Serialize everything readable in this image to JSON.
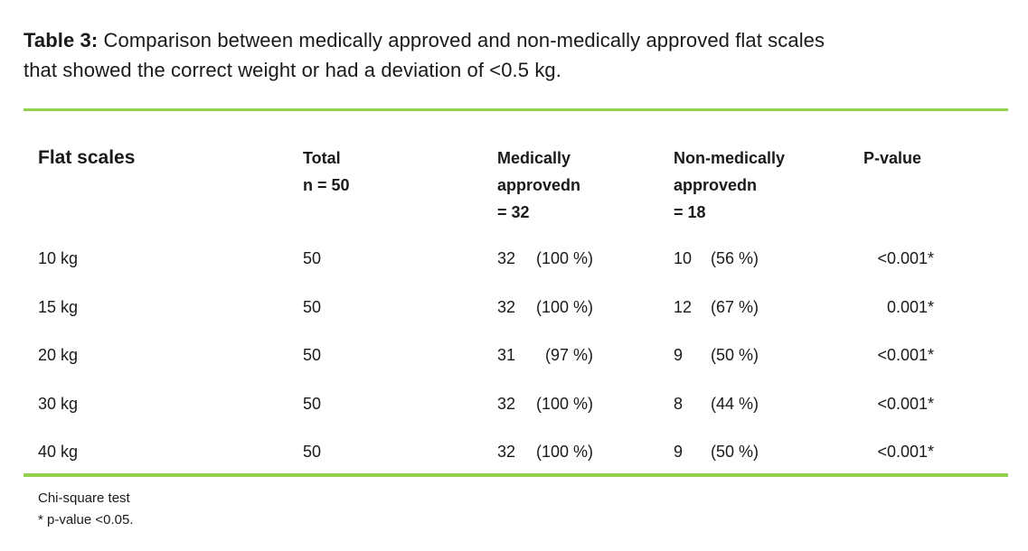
{
  "colors": {
    "rule_green": "#92D050",
    "text": "#1a1a1a",
    "background": "#ffffff"
  },
  "caption": {
    "label": "Table 3:",
    "line1_rest": " Comparison between medically approved and non-medically approved flat scales",
    "line2": "that showed the correct weight or had a deviation of <0.5 kg."
  },
  "table": {
    "headers": {
      "col1": "Flat scales",
      "col2": [
        "Total",
        "n = 50"
      ],
      "col3": [
        "Medically",
        "approvedn",
        "= 32"
      ],
      "col4": [
        "Non-medically",
        "approvedn",
        "= 18"
      ],
      "col5": "P-value"
    },
    "rows": [
      {
        "label": "10 kg",
        "total": "50",
        "med_n": "32",
        "med_pct": "(100 %)",
        "non_n": "10",
        "non_pct": "(56 %)",
        "p": "<0.001*"
      },
      {
        "label": "15 kg",
        "total": "50",
        "med_n": "32",
        "med_pct": "(100 %)",
        "non_n": "12",
        "non_pct": "(67 %)",
        "p": "0.001*"
      },
      {
        "label": "20 kg",
        "total": "50",
        "med_n": "31",
        "med_pct": "(97 %)",
        "non_n": "9",
        "non_pct": "(50 %)",
        "p": "<0.001*"
      },
      {
        "label": "30 kg",
        "total": "50",
        "med_n": "32",
        "med_pct": "(100 %)",
        "non_n": "8",
        "non_pct": "(44 %)",
        "p": "<0.001*"
      },
      {
        "label": "40 kg",
        "total": "50",
        "med_n": "32",
        "med_pct": "(100 %)",
        "non_n": "9",
        "non_pct": "(50 %)",
        "p": "<0.001*"
      }
    ]
  },
  "footer": {
    "line1": "Chi-square test",
    "line2": "* p-value <0.05."
  }
}
